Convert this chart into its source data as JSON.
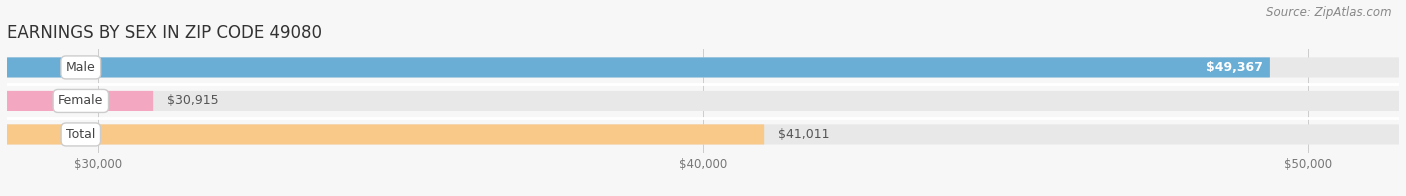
{
  "title": "EARNINGS BY SEX IN ZIP CODE 49080",
  "source": "Source: ZipAtlas.com",
  "categories": [
    "Male",
    "Female",
    "Total"
  ],
  "values": [
    49367,
    30915,
    41011
  ],
  "bar_colors": [
    "#6aadd5",
    "#f4a7c0",
    "#f9c98a"
  ],
  "label_inside": [
    true,
    false,
    false
  ],
  "value_labels": [
    "$49,367",
    "$30,915",
    "$41,011"
  ],
  "xmin": 28500,
  "xmax": 51500,
  "xticks": [
    30000,
    40000,
    50000
  ],
  "xtick_labels": [
    "$30,000",
    "$40,000",
    "$50,000"
  ],
  "background_color": "#f7f7f7",
  "bar_bg_color": "#e8e8e8",
  "bar_height": 0.6,
  "title_fontsize": 12,
  "source_fontsize": 8.5,
  "label_fontsize": 9,
  "tick_fontsize": 8.5,
  "value_color_inside": "white",
  "value_color_outside": "#555555"
}
